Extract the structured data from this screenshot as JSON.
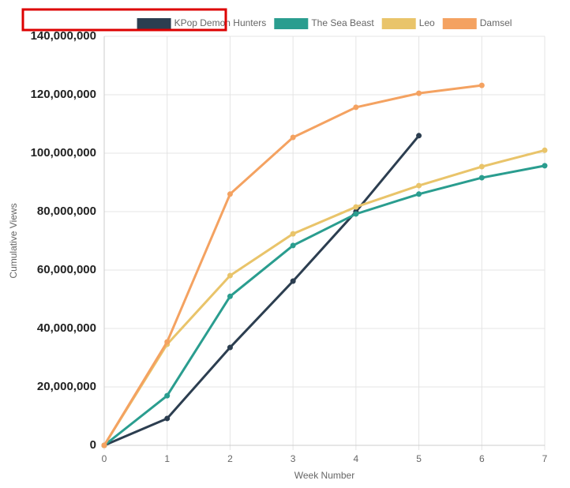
{
  "chart_data": {
    "type": "line",
    "x": [
      0,
      1,
      2,
      3,
      4,
      5,
      6,
      7
    ],
    "xlabel": "Week Number",
    "ylabel": "Cumulative Views",
    "xlim": [
      0,
      7
    ],
    "xticks": [
      0,
      1,
      2,
      3,
      4,
      5,
      6,
      7
    ],
    "ylim": [
      0,
      140000000
    ],
    "yticks": [
      {
        "value": 0,
        "label": "0"
      },
      {
        "value": 20000000,
        "label": "20,000,000"
      },
      {
        "value": 40000000,
        "label": "40,000,000"
      },
      {
        "value": 60000000,
        "label": "60,000,000"
      },
      {
        "value": 80000000,
        "label": "80,000,000"
      },
      {
        "value": 100000000,
        "label": "100,000,000"
      },
      {
        "value": 120000000,
        "label": "120,000,000"
      },
      {
        "value": 140000000,
        "label": "140,000,000"
      }
    ],
    "grid": true,
    "legend": "top",
    "series": [
      {
        "name": "KPop Demon Hunters",
        "color": "#2c3e50",
        "values": [
          0,
          9200000,
          33500000,
          56200000,
          80000000,
          106000000,
          null,
          null
        ]
      },
      {
        "name": "The Sea Beast",
        "color": "#2a9d8f",
        "values": [
          0,
          17000000,
          51000000,
          68400000,
          79200000,
          86000000,
          91600000,
          95700000
        ]
      },
      {
        "name": "Leo",
        "color": "#e9c46a",
        "values": [
          0,
          34600000,
          58100000,
          72400000,
          81600000,
          88900000,
          95400000,
          101000000
        ]
      },
      {
        "name": "Damsel",
        "color": "#f4a261",
        "values": [
          0,
          35400000,
          86000000,
          105400000,
          115700000,
          120500000,
          123200000,
          null
        ]
      }
    ]
  }
}
